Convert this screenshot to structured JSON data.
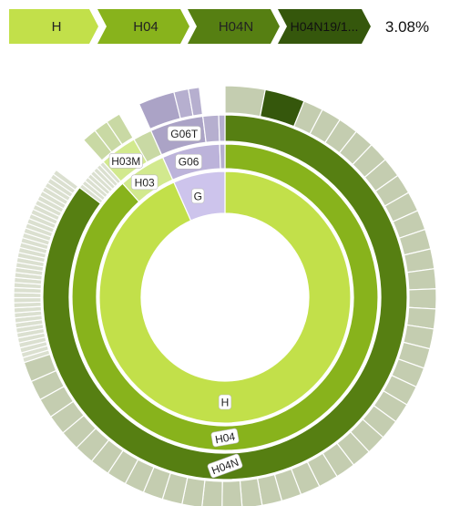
{
  "breadcrumb": {
    "items": [
      {
        "label": "H",
        "color": "#c2e04a"
      },
      {
        "label": "H04",
        "color": "#88b31c"
      },
      {
        "label": "H04N",
        "color": "#567f12"
      },
      {
        "label": "H04N19/1...",
        "color": "#35570c"
      }
    ],
    "percentage": "3.08%"
  },
  "colors": {
    "H": "#c2e04a",
    "H04": "#88b31c",
    "H04N": "#567f12",
    "H04N_leaf": "#c4cdb0",
    "H04N_leaf_selected": "#35570c",
    "H03": "#d2e98e",
    "H03_leaf": "#c9d9a4",
    "G": "#cdc4ec",
    "G06": "#bcb3da",
    "G06T": "#aba3c6",
    "G_leaf": "#b6afcf",
    "tail": "#dbe0d0"
  },
  "chart_data": {
    "type": "sunburst",
    "title": "",
    "selected_path": [
      "H",
      "H04",
      "H04N",
      "H04N19/1..."
    ],
    "selected_percentage": 3.08,
    "nodes": [
      {
        "name": "H",
        "value": 83,
        "children": [
          {
            "name": "H04",
            "value": 78.5,
            "children": [
              {
                "name": "H04N",
                "value": 75.5
              }
            ]
          },
          {
            "name": "H03",
            "value": 4.5,
            "children": [
              {
                "name": "H03M",
                "value": 3
              }
            ]
          }
        ]
      },
      {
        "name": "G",
        "value": 10.5,
        "children": [
          {
            "name": "G06",
            "value": 9,
            "children": [
              {
                "name": "G06T",
                "value": 6
              }
            ]
          }
        ]
      }
    ],
    "labels": {
      "H": "H",
      "H04": "H04",
      "H04N": "H04N",
      "H03": "H03",
      "H03M": "H03M",
      "G": "G",
      "G06": "G06",
      "G06T": "G06T"
    }
  }
}
